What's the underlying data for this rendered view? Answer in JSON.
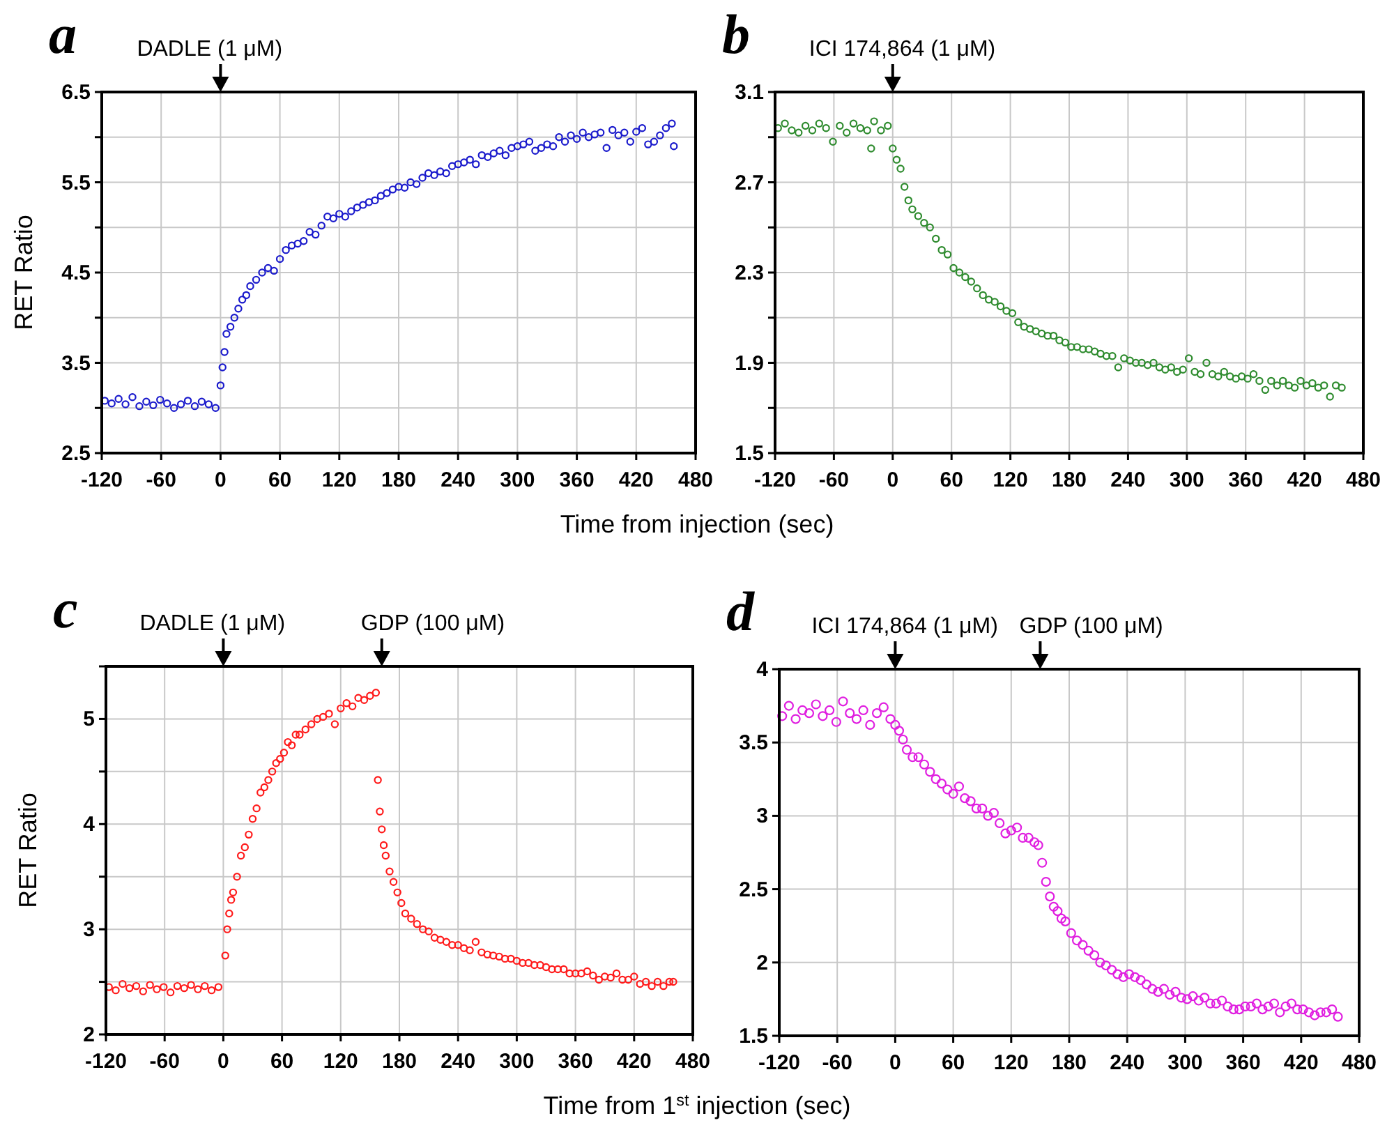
{
  "chart_data": [
    {
      "type": "scatter",
      "title": "a",
      "xlabel": "Time from injection (sec)",
      "ylabel": "RET Ratio",
      "marker": "circle",
      "grid": true,
      "xlim": [
        -120,
        480
      ],
      "xticks": [
        -120,
        -60,
        0,
        60,
        120,
        180,
        240,
        300,
        360,
        420,
        480
      ],
      "ylim": [
        2.5,
        6.5
      ],
      "yticks": [
        2.5,
        {
          "value": 3,
          "label": null
        },
        3.5,
        {
          "value": 4,
          "label": null
        },
        4.5,
        {
          "value": 5,
          "label": null
        },
        5.5,
        {
          "value": 6,
          "label": null
        },
        6.5
      ],
      "ref_lines": [
        {
          "axis": "x",
          "value": 0,
          "label": "DADLE (1 μM)"
        }
      ],
      "series": [
        {
          "color": "#1a1acc",
          "x": [
            -117,
            -110,
            -103,
            -96,
            -89,
            -82,
            -75,
            -68,
            -61,
            -54,
            -47,
            -40,
            -33,
            -26,
            -19,
            -12,
            -5,
            0,
            2,
            4,
            6,
            10,
            14,
            18,
            22,
            26,
            30,
            36,
            42,
            48,
            54,
            60,
            66,
            72,
            78,
            84,
            90,
            96,
            102,
            108,
            114,
            120,
            126,
            132,
            138,
            144,
            150,
            156,
            162,
            168,
            174,
            180,
            186,
            192,
            198,
            204,
            210,
            216,
            222,
            228,
            234,
            240,
            246,
            252,
            258,
            264,
            270,
            276,
            282,
            288,
            294,
            300,
            306,
            312,
            318,
            324,
            330,
            336,
            342,
            348,
            354,
            360,
            366,
            372,
            378,
            384,
            390,
            396,
            402,
            408,
            414,
            420,
            426,
            432,
            438,
            444,
            450,
            456,
            458
          ],
          "values": [
            3.08,
            3.05,
            3.1,
            3.04,
            3.12,
            3.02,
            3.07,
            3.03,
            3.09,
            3.05,
            3.0,
            3.04,
            3.08,
            3.02,
            3.07,
            3.04,
            3.0,
            3.25,
            3.45,
            3.62,
            3.82,
            3.9,
            4.0,
            4.1,
            4.2,
            4.25,
            4.35,
            4.42,
            4.5,
            4.55,
            4.52,
            4.65,
            4.75,
            4.8,
            4.82,
            4.85,
            4.95,
            4.92,
            5.02,
            5.12,
            5.1,
            5.15,
            5.12,
            5.18,
            5.22,
            5.25,
            5.28,
            5.3,
            5.35,
            5.38,
            5.42,
            5.45,
            5.44,
            5.5,
            5.48,
            5.55,
            5.6,
            5.58,
            5.62,
            5.6,
            5.68,
            5.7,
            5.72,
            5.75,
            5.7,
            5.8,
            5.78,
            5.82,
            5.85,
            5.8,
            5.88,
            5.9,
            5.92,
            5.95,
            5.85,
            5.88,
            5.92,
            5.9,
            6.0,
            5.95,
            6.02,
            5.98,
            6.05,
            6.0,
            6.03,
            6.05,
            5.88,
            6.08,
            6.02,
            6.05,
            5.95,
            6.06,
            6.1,
            5.92,
            5.95,
            6.02,
            6.1,
            6.15,
            5.9
          ]
        }
      ]
    },
    {
      "type": "scatter",
      "title": "b",
      "marker": "circle",
      "grid": true,
      "xlim": [
        -120,
        480
      ],
      "xticks": [
        -120,
        -60,
        0,
        60,
        120,
        180,
        240,
        300,
        360,
        420,
        480
      ],
      "ylim": [
        1.5,
        3.1
      ],
      "yticks": [
        1.5,
        {
          "value": 1.7,
          "label": null
        },
        1.9,
        {
          "value": 2.1,
          "label": null
        },
        2.3,
        {
          "value": 2.5,
          "label": null
        },
        2.7,
        {
          "value": 2.9,
          "label": null
        },
        3.1
      ],
      "ref_lines": [
        {
          "axis": "x",
          "value": 0,
          "label": "ICI 174,864 (1 μM)"
        }
      ],
      "series": [
        {
          "color": "#2e8b2e",
          "x": [
            -117,
            -110,
            -103,
            -96,
            -89,
            -82,
            -75,
            -68,
            -61,
            -54,
            -47,
            -40,
            -33,
            -26,
            -22,
            -19,
            -12,
            -5,
            0,
            4,
            8,
            12,
            16,
            20,
            26,
            32,
            38,
            44,
            50,
            56,
            62,
            68,
            74,
            80,
            86,
            92,
            98,
            104,
            110,
            116,
            122,
            128,
            134,
            140,
            146,
            152,
            158,
            164,
            170,
            176,
            182,
            188,
            194,
            200,
            206,
            212,
            218,
            224,
            230,
            236,
            242,
            248,
            254,
            260,
            266,
            272,
            278,
            284,
            290,
            296,
            302,
            308,
            314,
            320,
            326,
            332,
            338,
            344,
            350,
            356,
            362,
            368,
            374,
            380,
            386,
            392,
            398,
            404,
            410,
            416,
            422,
            428,
            434,
            440,
            446,
            452,
            458
          ],
          "values": [
            2.94,
            2.96,
            2.93,
            2.92,
            2.95,
            2.93,
            2.96,
            2.94,
            2.88,
            2.95,
            2.92,
            2.96,
            2.94,
            2.93,
            2.85,
            2.97,
            2.93,
            2.95,
            2.85,
            2.8,
            2.76,
            2.68,
            2.62,
            2.58,
            2.55,
            2.52,
            2.5,
            2.45,
            2.4,
            2.38,
            2.32,
            2.3,
            2.28,
            2.26,
            2.23,
            2.2,
            2.18,
            2.17,
            2.15,
            2.13,
            2.12,
            2.08,
            2.06,
            2.05,
            2.04,
            2.03,
            2.02,
            2.02,
            2.0,
            1.99,
            1.97,
            1.97,
            1.96,
            1.96,
            1.95,
            1.94,
            1.93,
            1.93,
            1.88,
            1.92,
            1.91,
            1.9,
            1.9,
            1.89,
            1.9,
            1.88,
            1.87,
            1.88,
            1.86,
            1.87,
            1.92,
            1.86,
            1.85,
            1.9,
            1.85,
            1.84,
            1.86,
            1.84,
            1.83,
            1.84,
            1.83,
            1.85,
            1.82,
            1.78,
            1.82,
            1.8,
            1.82,
            1.8,
            1.79,
            1.82,
            1.8,
            1.81,
            1.79,
            1.8,
            1.75,
            1.8,
            1.79
          ]
        }
      ]
    },
    {
      "type": "scatter",
      "title": "c",
      "xlabel": "Time from 1$^{st}$ injection (sec)",
      "ylabel": "RET Ratio",
      "marker": "circle",
      "grid": true,
      "xlim": [
        -120,
        480
      ],
      "xticks": [
        -120,
        -60,
        0,
        60,
        120,
        180,
        240,
        300,
        360,
        420,
        480
      ],
      "ylim": [
        2,
        5.5
      ],
      "yticks": [
        2,
        {
          "value": 2.5,
          "label": null
        },
        3,
        {
          "value": 3.5,
          "label": null
        },
        4,
        {
          "value": 4.5,
          "label": null
        },
        5,
        {
          "value": 5.5,
          "label": null
        }
      ],
      "ref_lines": [
        {
          "axis": "x",
          "value": 0,
          "label": "DADLE (1 μM)"
        },
        {
          "axis": "x",
          "value": 162,
          "label": "GDP (100 μM)"
        }
      ],
      "series": [
        {
          "color": "#ff1a1a",
          "x": [
            -117,
            -110,
            -103,
            -96,
            -89,
            -82,
            -75,
            -68,
            -61,
            -54,
            -47,
            -40,
            -33,
            -26,
            -19,
            -12,
            -5,
            2,
            4,
            6,
            8,
            10,
            14,
            18,
            22,
            26,
            30,
            34,
            38,
            42,
            46,
            50,
            54,
            58,
            62,
            66,
            70,
            74,
            78,
            84,
            90,
            96,
            102,
            108,
            114,
            120,
            126,
            132,
            138,
            144,
            150,
            156,
            158,
            160,
            162,
            164,
            166,
            170,
            174,
            178,
            182,
            186,
            192,
            198,
            204,
            210,
            216,
            222,
            228,
            234,
            240,
            246,
            252,
            258,
            264,
            270,
            276,
            282,
            288,
            294,
            300,
            306,
            312,
            318,
            324,
            330,
            336,
            342,
            348,
            354,
            360,
            366,
            372,
            378,
            384,
            390,
            396,
            402,
            408,
            414,
            420,
            426,
            432,
            438,
            444,
            450,
            456,
            460
          ],
          "values": [
            2.45,
            2.42,
            2.48,
            2.44,
            2.46,
            2.41,
            2.47,
            2.43,
            2.45,
            2.4,
            2.46,
            2.44,
            2.47,
            2.43,
            2.46,
            2.42,
            2.45,
            2.75,
            3.0,
            3.15,
            3.28,
            3.35,
            3.5,
            3.7,
            3.78,
            3.9,
            4.05,
            4.15,
            4.3,
            4.35,
            4.42,
            4.5,
            4.58,
            4.62,
            4.68,
            4.78,
            4.75,
            4.85,
            4.85,
            4.9,
            4.95,
            5.0,
            5.02,
            5.05,
            4.95,
            5.1,
            5.15,
            5.12,
            5.2,
            5.18,
            5.22,
            5.25,
            4.42,
            4.12,
            3.95,
            3.8,
            3.7,
            3.55,
            3.45,
            3.35,
            3.25,
            3.15,
            3.1,
            3.05,
            3.0,
            2.98,
            2.92,
            2.9,
            2.88,
            2.85,
            2.85,
            2.82,
            2.8,
            2.88,
            2.78,
            2.76,
            2.75,
            2.74,
            2.72,
            2.72,
            2.7,
            2.68,
            2.68,
            2.66,
            2.66,
            2.64,
            2.62,
            2.62,
            2.62,
            2.58,
            2.58,
            2.58,
            2.6,
            2.56,
            2.52,
            2.55,
            2.54,
            2.58,
            2.52,
            2.52,
            2.55,
            2.48,
            2.5,
            2.46,
            2.5,
            2.46,
            2.5,
            2.5
          ]
        }
      ]
    },
    {
      "type": "scatter",
      "title": "d",
      "marker": "circle",
      "grid": true,
      "xlim": [
        -120,
        480
      ],
      "xticks": [
        -120,
        -60,
        0,
        60,
        120,
        180,
        240,
        300,
        360,
        420,
        480
      ],
      "ylim": [
        1.5,
        4
      ],
      "yticks": [
        1.5,
        2,
        2.5,
        3,
        3.5,
        4
      ],
      "ref_lines": [
        {
          "axis": "x",
          "value": 0,
          "label": "ICI 174,864 (1 μM)"
        },
        {
          "axis": "x",
          "value": 150,
          "label": "GDP (100 μM)"
        }
      ],
      "series": [
        {
          "color": "#e01ee0",
          "x": [
            -117,
            -110,
            -103,
            -96,
            -89,
            -82,
            -75,
            -68,
            -61,
            -54,
            -47,
            -40,
            -33,
            -26,
            -19,
            -12,
            -5,
            0,
            4,
            8,
            12,
            18,
            24,
            30,
            36,
            42,
            48,
            54,
            60,
            66,
            72,
            78,
            84,
            90,
            96,
            102,
            108,
            114,
            120,
            126,
            132,
            138,
            144,
            148,
            152,
            156,
            160,
            164,
            168,
            172,
            176,
            182,
            188,
            194,
            200,
            206,
            212,
            218,
            224,
            230,
            236,
            242,
            248,
            254,
            260,
            266,
            272,
            278,
            284,
            290,
            296,
            302,
            308,
            314,
            320,
            326,
            332,
            338,
            344,
            350,
            356,
            362,
            368,
            374,
            380,
            386,
            392,
            398,
            404,
            410,
            416,
            422,
            428,
            434,
            440,
            446,
            452,
            458
          ],
          "values": [
            3.68,
            3.75,
            3.66,
            3.72,
            3.7,
            3.76,
            3.68,
            3.72,
            3.64,
            3.78,
            3.7,
            3.66,
            3.72,
            3.62,
            3.7,
            3.74,
            3.66,
            3.62,
            3.58,
            3.52,
            3.45,
            3.4,
            3.4,
            3.35,
            3.3,
            3.25,
            3.22,
            3.18,
            3.15,
            3.2,
            3.12,
            3.1,
            3.05,
            3.05,
            3.0,
            3.02,
            2.95,
            2.88,
            2.9,
            2.92,
            2.85,
            2.85,
            2.82,
            2.8,
            2.68,
            2.55,
            2.45,
            2.38,
            2.35,
            2.3,
            2.28,
            2.2,
            2.15,
            2.12,
            2.08,
            2.05,
            2.0,
            1.98,
            1.95,
            1.92,
            1.9,
            1.92,
            1.9,
            1.88,
            1.85,
            1.82,
            1.8,
            1.82,
            1.78,
            1.8,
            1.76,
            1.75,
            1.77,
            1.74,
            1.76,
            1.72,
            1.72,
            1.74,
            1.7,
            1.68,
            1.68,
            1.7,
            1.7,
            1.72,
            1.68,
            1.7,
            1.72,
            1.66,
            1.7,
            1.72,
            1.68,
            1.68,
            1.66,
            1.64,
            1.66,
            1.66,
            1.68,
            1.63
          ]
        }
      ]
    }
  ]
}
